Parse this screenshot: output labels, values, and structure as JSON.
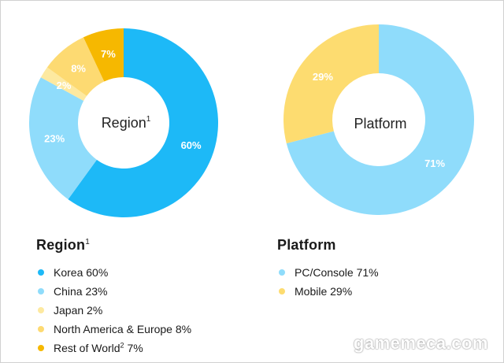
{
  "chart_data": [
    {
      "type": "pie",
      "center_label": "Region",
      "center_label_sup": "1",
      "title": "Region",
      "title_sup": "1",
      "slices": [
        {
          "name": "Korea",
          "value": 60,
          "label": "60%",
          "legend": "Korea 60%",
          "color": "#1db9f7"
        },
        {
          "name": "China",
          "value": 23,
          "label": "23%",
          "legend": "China 23%",
          "color": "#8fdcfb"
        },
        {
          "name": "Japan",
          "value": 2,
          "label": "2%",
          "legend": "Japan 2%",
          "color": "#fde9a0"
        },
        {
          "name": "North America & Europe",
          "value": 8,
          "label": "8%",
          "legend": "North America & Europe 8%",
          "color": "#fdda72"
        },
        {
          "name": "Rest of World",
          "value": 7,
          "label": "7%",
          "legend": "Rest of World",
          "legend_sup": "2",
          "legend_tail": " 7%",
          "color": "#f6b800"
        }
      ]
    },
    {
      "type": "pie",
      "center_label": "Platform",
      "title": "Platform",
      "slices": [
        {
          "name": "PC/Console",
          "value": 71,
          "label": "71%",
          "legend": "PC/Console 71%",
          "color": "#8fdcfb"
        },
        {
          "name": "Mobile",
          "value": 29,
          "label": "29%",
          "legend": "Mobile 29%",
          "color": "#fddc70"
        }
      ]
    }
  ],
  "watermark": "gamemeca.com"
}
